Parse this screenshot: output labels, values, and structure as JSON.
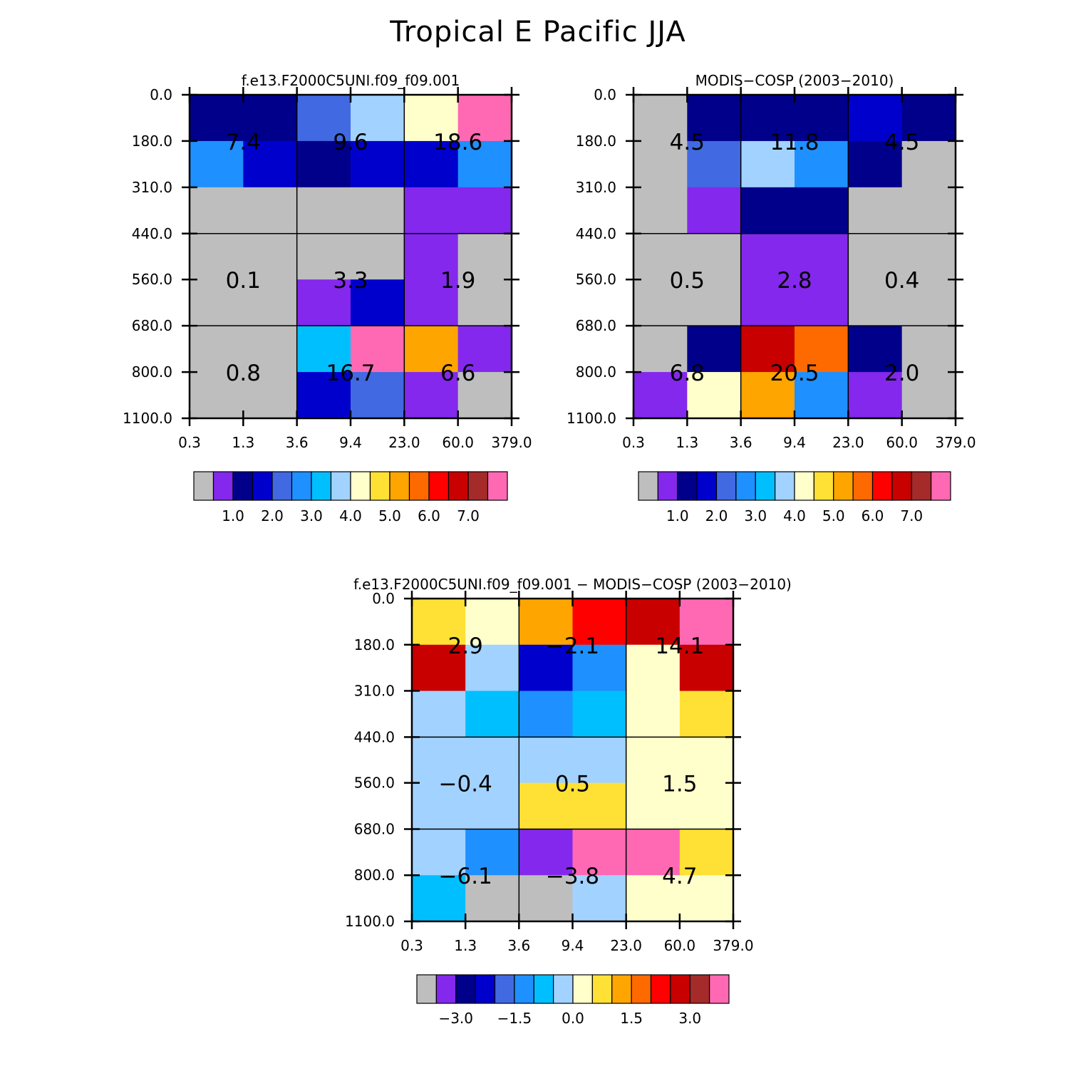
{
  "title": "Tropical E Pacific JJA",
  "colors": {
    "palette": [
      "#bebebe",
      "#8328ec",
      "#00008b",
      "#0000cd",
      "#4169e1",
      "#1e90ff",
      "#00bfff",
      "#a2d2ff",
      "#ffffcc",
      "#ffe135",
      "#ffa500",
      "#ff6a00",
      "#ff0000",
      "#c80000",
      "#a52a2a",
      "#ff69b4"
    ]
  },
  "chart_data": [
    {
      "type": "heatmap",
      "title": "f.e13.F2000C5UNI.f09_f09.001",
      "x_tick_labels": [
        "0.3",
        "1.3",
        "3.6",
        "9.4",
        "23.0",
        "60.0",
        "379.0"
      ],
      "y_tick_labels": [
        "0.0",
        "180.0",
        "310.0",
        "440.0",
        "560.0",
        "680.0",
        "800.0",
        "1100.0"
      ],
      "cell_color_index": [
        [
          2,
          2,
          4,
          7,
          8,
          15
        ],
        [
          5,
          3,
          2,
          3,
          3,
          5
        ],
        [
          0,
          0,
          0,
          0,
          1,
          1
        ],
        [
          0,
          0,
          0,
          0,
          1,
          0
        ],
        [
          0,
          0,
          1,
          3,
          1,
          0
        ],
        [
          0,
          0,
          6,
          15,
          10,
          1
        ],
        [
          0,
          0,
          3,
          4,
          1,
          0
        ]
      ],
      "group_values": [
        [
          "7.4",
          "9.6",
          "18.6"
        ],
        [
          "0.1",
          "3.3",
          "1.9"
        ],
        [
          "0.8",
          "16.7",
          "6.6"
        ]
      ],
      "colorbar": {
        "labels": [
          "1.0",
          "2.0",
          "3.0",
          "4.0",
          "5.0",
          "6.0",
          "7.0"
        ]
      }
    },
    {
      "type": "heatmap",
      "title": "MODIS-COSP (2003-2010)",
      "x_tick_labels": [
        "0.3",
        "1.3",
        "3.6",
        "9.4",
        "23.0",
        "60.0",
        "379.0"
      ],
      "y_tick_labels": [
        "0.0",
        "180.0",
        "310.0",
        "440.0",
        "560.0",
        "680.0",
        "800.0",
        "1100.0"
      ],
      "cell_color_index": [
        [
          0,
          2,
          2,
          2,
          3,
          2
        ],
        [
          0,
          4,
          7,
          5,
          2,
          0
        ],
        [
          0,
          1,
          2,
          2,
          0,
          0
        ],
        [
          0,
          0,
          1,
          1,
          0,
          0
        ],
        [
          0,
          0,
          1,
          1,
          0,
          0
        ],
        [
          0,
          2,
          13,
          11,
          2,
          0
        ],
        [
          1,
          8,
          10,
          5,
          1,
          0
        ]
      ],
      "group_values": [
        [
          "4.5",
          "11.8",
          "4.5"
        ],
        [
          "0.5",
          "2.8",
          "0.4"
        ],
        [
          "6.8",
          "20.5",
          "2.0"
        ]
      ],
      "colorbar": {
        "labels": [
          "1.0",
          "2.0",
          "3.0",
          "4.0",
          "5.0",
          "6.0",
          "7.0"
        ]
      }
    },
    {
      "type": "heatmap",
      "title": "f.e13.F2000C5UNI.f09_f09.001 - MODIS-COSP (2003-2010)",
      "x_tick_labels": [
        "0.3",
        "1.3",
        "3.6",
        "9.4",
        "23.0",
        "60.0",
        "379.0"
      ],
      "y_tick_labels": [
        "0.0",
        "180.0",
        "310.0",
        "440.0",
        "560.0",
        "680.0",
        "800.0",
        "1100.0"
      ],
      "cell_color_index": [
        [
          9,
          8,
          10,
          12,
          13,
          15
        ],
        [
          13,
          7,
          3,
          5,
          8,
          13
        ],
        [
          7,
          6,
          5,
          6,
          8,
          9
        ],
        [
          7,
          7,
          7,
          7,
          8,
          8
        ],
        [
          7,
          7,
          9,
          9,
          8,
          8
        ],
        [
          7,
          5,
          1,
          15,
          15,
          9
        ],
        [
          6,
          0,
          0,
          7,
          8,
          8
        ]
      ],
      "group_values": [
        [
          "2.9",
          "-2.1",
          "14.1"
        ],
        [
          "-0.4",
          "0.5",
          "1.5"
        ],
        [
          "-6.1",
          "-3.8",
          "4.7"
        ]
      ],
      "colorbar": {
        "labels": [
          "-3.0",
          "-1.5",
          "0.0",
          "1.5",
          "3.0"
        ]
      }
    }
  ]
}
